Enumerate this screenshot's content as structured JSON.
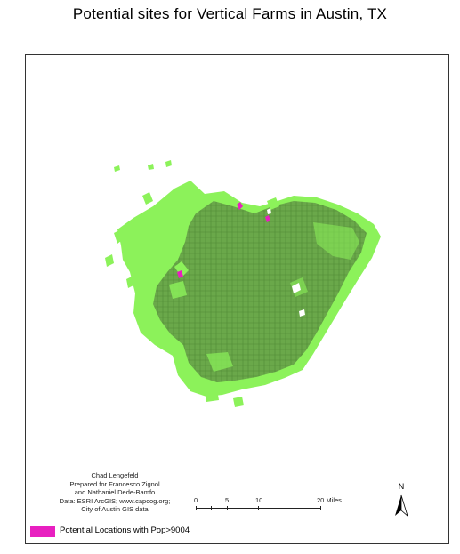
{
  "title": "Potential sites for Vertical Farms in Austin, TX",
  "credits": [
    "Chad Lengefeld",
    "Prepared for Francesco Zignol",
    "and Nathaniel Dede-Bamfo",
    "Data: ESRI ArcGIS; www.capcog.org;",
    "City of Austin GIS data"
  ],
  "scale_bar": {
    "labels": [
      "0",
      "5",
      "10",
      "20 Miles"
    ],
    "values": [
      0,
      5,
      10,
      20
    ],
    "unit": "Miles"
  },
  "north_arrow": {
    "label": "N"
  },
  "legend": {
    "label": "Potential Locations with Pop>9004",
    "color": "#e820c0"
  },
  "colors": {
    "city_fill": "#8cf25a",
    "parcels": "#5c9a3c",
    "potential_sites": "#e820c0",
    "frame": "#333333"
  }
}
